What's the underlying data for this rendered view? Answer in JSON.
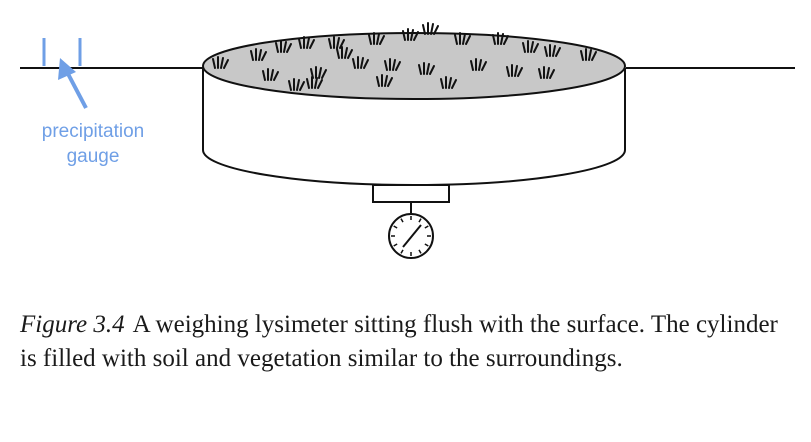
{
  "labels": {
    "precipitation_gauge_line1": "precipitation",
    "precipitation_gauge_line2": "gauge"
  },
  "caption": {
    "figure_number": "Figure 3.4",
    "text": "A weighing lysimeter sitting flush with the surface. The cylinder is filled with soil and vegetation similar to the surroundings."
  },
  "colors": {
    "label_color": "#6f9fe6",
    "soil_fill": "#c8c8c8",
    "line": "#111111"
  }
}
